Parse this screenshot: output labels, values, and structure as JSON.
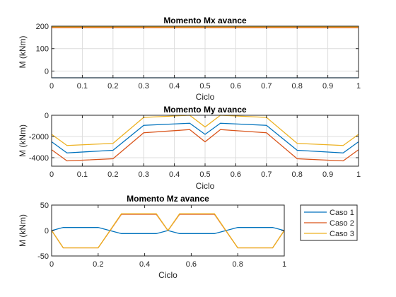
{
  "chart_data": [
    {
      "type": "line",
      "title": "Momento Mx avance",
      "xlabel": "Ciclo",
      "ylabel": "M (kNm)",
      "xlim": [
        0,
        1
      ],
      "ylim": [
        -30,
        200
      ],
      "xticks": [
        0,
        0.1,
        0.2,
        0.3,
        0.4,
        0.5,
        0.6,
        0.7,
        0.8,
        0.9,
        1
      ],
      "xticklabels": [
        "0",
        "0.1",
        "0.2",
        "0.3",
        "0.4",
        "0.5",
        "0.6",
        "0.7",
        "0.8",
        "0.9",
        "1"
      ],
      "yticks": [
        0,
        100,
        200
      ],
      "yticklabels": [
        "0",
        "100",
        "200"
      ],
      "grid": true,
      "series": [
        {
          "name": "Caso 1",
          "color": "#0072BD",
          "x": [
            0,
            1
          ],
          "y": [
            -30,
            -30
          ]
        },
        {
          "name": "Caso 2",
          "color": "#D95319",
          "x": [
            0,
            1
          ],
          "y": [
            193,
            193
          ]
        },
        {
          "name": "Caso 3",
          "color": "#EDB120",
          "x": [
            0,
            1
          ],
          "y": [
            197,
            197
          ]
        }
      ]
    },
    {
      "type": "line",
      "title": "Momento My avance",
      "xlabel": "Ciclo",
      "ylabel": "M (kNm)",
      "xlim": [
        0,
        1
      ],
      "ylim": [
        -4800,
        0
      ],
      "xticks": [
        0,
        0.1,
        0.2,
        0.3,
        0.4,
        0.5,
        0.6,
        0.7,
        0.8,
        0.9,
        1
      ],
      "xticklabels": [
        "0",
        "0.1",
        "0.2",
        "0.3",
        "0.4",
        "0.5",
        "0.6",
        "0.7",
        "0.8",
        "0.9",
        "1"
      ],
      "yticks": [
        -4000,
        -2000,
        0
      ],
      "yticklabels": [
        "-4000",
        "-2000",
        "0"
      ],
      "grid": true,
      "series": [
        {
          "name": "Caso 1",
          "color": "#0072BD",
          "x": [
            0,
            0.05,
            0.2,
            0.3,
            0.45,
            0.5,
            0.55,
            0.7,
            0.8,
            0.95,
            1
          ],
          "y": [
            -2500,
            -3550,
            -3300,
            -950,
            -750,
            -1800,
            -750,
            -950,
            -3300,
            -3550,
            -2500
          ]
        },
        {
          "name": "Caso 2",
          "color": "#D95319",
          "x": [
            0,
            0.05,
            0.2,
            0.3,
            0.45,
            0.5,
            0.55,
            0.7,
            0.8,
            0.95,
            1
          ],
          "y": [
            -3250,
            -4300,
            -4100,
            -1650,
            -1350,
            -2500,
            -1350,
            -1650,
            -4100,
            -4300,
            -3250
          ]
        },
        {
          "name": "Caso 3",
          "color": "#EDB120",
          "x": [
            0,
            0.05,
            0.2,
            0.3,
            0.45,
            0.5,
            0.55,
            0.7,
            0.8,
            0.95,
            1
          ],
          "y": [
            -1800,
            -2850,
            -2650,
            -200,
            0,
            -1100,
            0,
            -200,
            -2650,
            -2850,
            -1800
          ]
        }
      ]
    },
    {
      "type": "line",
      "title": "Momento Mz avance",
      "xlabel": "Ciclo",
      "ylabel": "M (kNm)",
      "xlim": [
        0,
        1
      ],
      "ylim": [
        -50,
        50
      ],
      "xticks": [
        0,
        0.2,
        0.4,
        0.6,
        0.8,
        1
      ],
      "xticklabels": [
        "0",
        "0.2",
        "0.4",
        "0.6",
        "0.8",
        "1"
      ],
      "yticks": [
        -50,
        0,
        50
      ],
      "yticklabels": [
        "-50",
        "0",
        "50"
      ],
      "grid": false,
      "legend": "outside-right",
      "series": [
        {
          "name": "Caso 1",
          "color": "#0072BD",
          "x": [
            0,
            0.05,
            0.2,
            0.3,
            0.45,
            0.5,
            0.55,
            0.7,
            0.8,
            0.95,
            1
          ],
          "y": [
            0,
            6,
            6,
            -6,
            -6,
            0,
            -6,
            -6,
            6,
            6,
            0
          ]
        },
        {
          "name": "Caso 2",
          "color": "#D95319",
          "x": [
            0,
            0.05,
            0.2,
            0.3,
            0.45,
            0.5,
            0.55,
            0.7,
            0.8,
            0.95,
            1
          ],
          "y": [
            0,
            -34,
            -34,
            32,
            32,
            0,
            32,
            32,
            -34,
            -34,
            0
          ]
        },
        {
          "name": "Caso 3",
          "color": "#EDB120",
          "x": [
            0,
            0.05,
            0.2,
            0.3,
            0.45,
            0.5,
            0.55,
            0.7,
            0.8,
            0.95,
            1
          ],
          "y": [
            0,
            -34,
            -34,
            33,
            33,
            0,
            33,
            33,
            -34,
            -34,
            0
          ]
        }
      ]
    }
  ]
}
